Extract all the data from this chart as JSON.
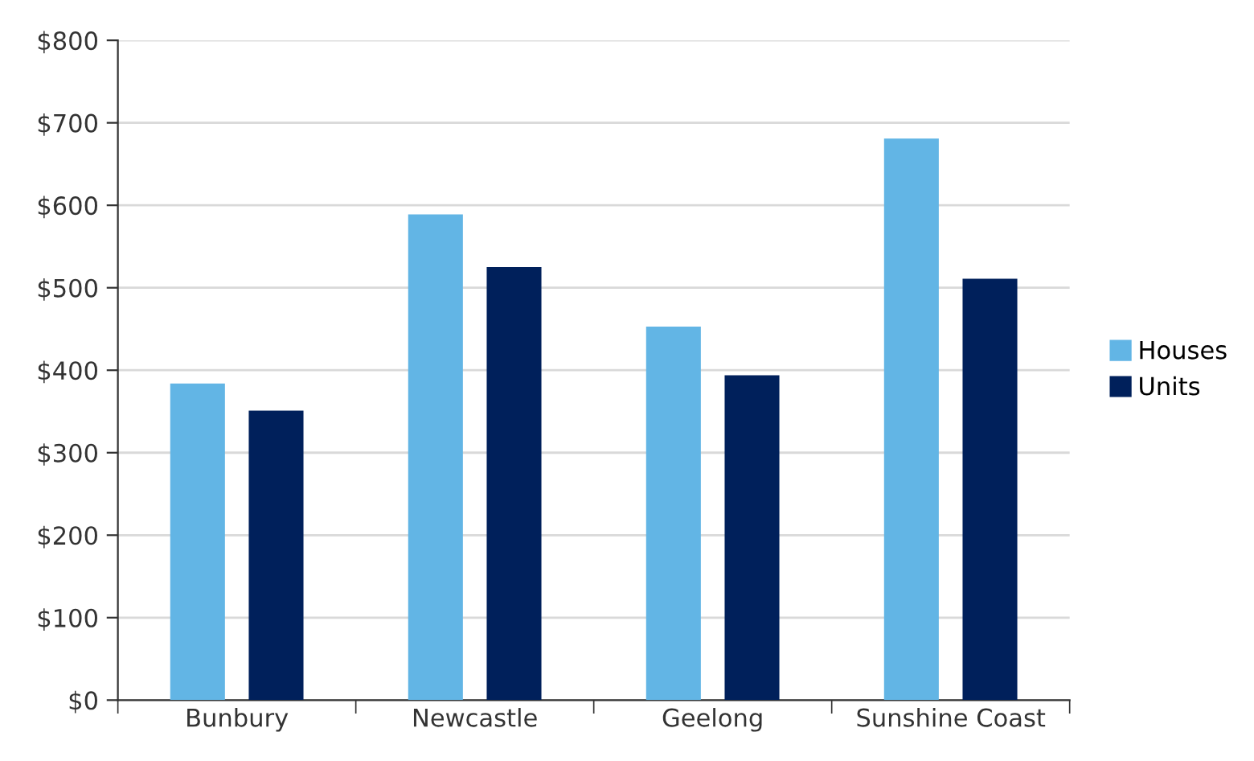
{
  "chart_data": {
    "type": "bar",
    "categories": [
      "Bunbury",
      "Newcastle",
      "Geelong",
      "Sunshine Coast"
    ],
    "series": [
      {
        "name": "Houses",
        "color": "#62b5e5",
        "values": [
          384,
          589,
          453,
          681
        ]
      },
      {
        "name": "Units",
        "color": "#00205b",
        "values": [
          351,
          525,
          394,
          511
        ]
      }
    ],
    "ylim": [
      0,
      800
    ],
    "yticks": [
      {
        "value": 0,
        "label": "$0"
      },
      {
        "value": 100,
        "label": "$100"
      },
      {
        "value": 200,
        "label": "$200"
      },
      {
        "value": 300,
        "label": "$300"
      },
      {
        "value": 400,
        "label": "$400"
      },
      {
        "value": 500,
        "label": "$500"
      },
      {
        "value": 600,
        "label": "$600"
      },
      {
        "value": 700,
        "label": "$700"
      },
      {
        "value": 800,
        "label": "$800"
      }
    ],
    "grid": "y",
    "legend": "right"
  }
}
